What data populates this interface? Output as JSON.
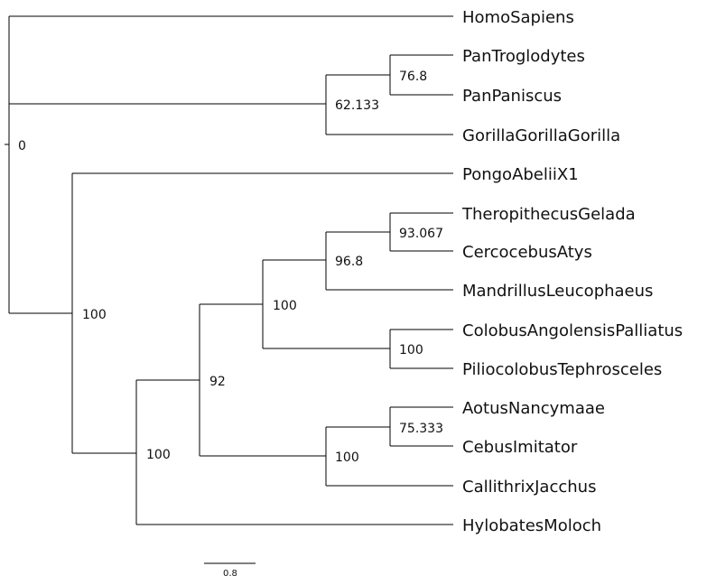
{
  "tree": {
    "leaves": [
      "HomoSapiens",
      "PanTroglodytes",
      "PanPaniscus",
      "GorillaGorillaGorilla",
      "PongoAbeliiX1",
      "TheropithecusGelada",
      "CercocebusAtys",
      "MandrillusLeucophaeus",
      "ColobusAngolensisPalliatus",
      "PiliocolobusTephrosceles",
      "AotusNancymaae",
      "CebusImitator",
      "CallithrixJacchus",
      "HylobatesMoloch"
    ],
    "support_values": {
      "root": "0",
      "hominini_pan": "76.8",
      "homininae": "62.133",
      "theropithecus_cercocebus": "93.067",
      "papionini": "96.8",
      "colobinae": "100",
      "catarrhini_cercopithecidae": "100",
      "aotus_cebus": "75.333",
      "platyrrhini": "100",
      "monkeys": "92",
      "non_great_ape_clade": "100",
      "pongo_clade": "100"
    },
    "scale_bar": "0.8"
  }
}
